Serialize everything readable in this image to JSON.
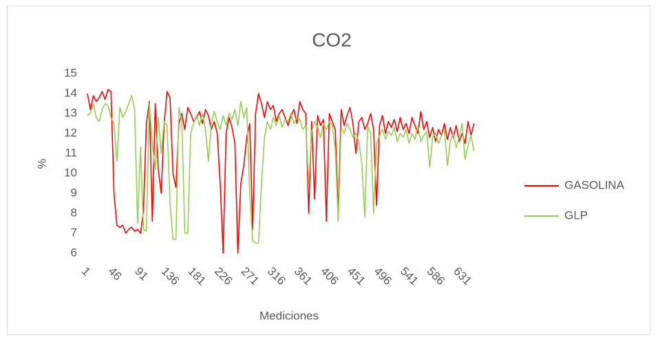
{
  "chart_data": {
    "type": "line",
    "title": "CO2",
    "xlabel": "Mediciones",
    "ylabel": "%",
    "x": [
      1,
      6,
      11,
      16,
      21,
      26,
      31,
      36,
      41,
      46,
      51,
      56,
      61,
      66,
      71,
      76,
      81,
      86,
      91,
      96,
      101,
      106,
      111,
      116,
      121,
      126,
      131,
      136,
      141,
      146,
      151,
      156,
      161,
      166,
      171,
      176,
      181,
      186,
      191,
      196,
      201,
      206,
      211,
      216,
      221,
      226,
      231,
      236,
      241,
      246,
      251,
      256,
      261,
      266,
      271,
      276,
      281,
      286,
      291,
      296,
      301,
      306,
      311,
      316,
      321,
      326,
      331,
      336,
      341,
      346,
      351,
      356,
      361,
      366,
      371,
      376,
      381,
      386,
      391,
      396,
      401,
      406,
      411,
      416,
      421,
      426,
      431,
      436,
      441,
      446,
      451,
      456,
      461,
      466,
      471,
      476,
      481,
      486,
      491,
      496,
      501,
      506,
      511,
      516,
      521,
      526,
      531,
      536,
      541,
      546,
      551,
      556,
      561,
      566,
      571,
      576,
      581,
      586,
      591,
      596,
      601,
      606,
      611,
      616,
      621,
      626,
      631,
      636,
      641,
      646,
      651,
      656
    ],
    "series": [
      {
        "name": "GASOLINA",
        "color": "#ff0000",
        "values": [
          14.0,
          13.2,
          13.9,
          13.6,
          13.8,
          14.1,
          13.7,
          14.2,
          14.1,
          9.0,
          7.4,
          7.3,
          7.4,
          7.0,
          7.2,
          7.3,
          7.1,
          7.2,
          7.0,
          8.1,
          12.5,
          13.6,
          7.6,
          13.5,
          10.2,
          9.0,
          12.5,
          14.1,
          13.8,
          10.0,
          9.3,
          12.5,
          13.0,
          12.2,
          13.3,
          13.0,
          12.6,
          12.8,
          13.1,
          12.5,
          13.2,
          12.9,
          12.2,
          12.6,
          12.0,
          9.5,
          6.0,
          12.0,
          12.8,
          12.3,
          11.5,
          6.0,
          9.5,
          10.4,
          11.8,
          12.5,
          7.2,
          13.0,
          14.0,
          13.5,
          12.8,
          13.6,
          13.2,
          13.4,
          12.6,
          13.0,
          13.2,
          12.8,
          12.4,
          12.9,
          13.2,
          12.5,
          13.6,
          13.2,
          13.0,
          8.0,
          12.6,
          8.7,
          12.9,
          12.4,
          12.7,
          7.6,
          13.0,
          12.6,
          12.2,
          8.0,
          13.2,
          12.4,
          12.9,
          13.3,
          12.5,
          11.0,
          12.6,
          12.8,
          12.2,
          12.5,
          13.0,
          12.2,
          8.4,
          12.4,
          12.9,
          12.0,
          12.6,
          12.3,
          12.7,
          12.1,
          12.8,
          12.2,
          12.5,
          12.0,
          12.8,
          12.4,
          12.0,
          13.1,
          12.2,
          12.6,
          11.8,
          12.3,
          11.6,
          12.2,
          11.9,
          12.5,
          11.7,
          12.3,
          11.8,
          12.4,
          11.6,
          12.0,
          11.5,
          12.6,
          11.9,
          12.5
        ]
      },
      {
        "name": "GLP",
        "color": "#92d050",
        "values": [
          12.9,
          13.0,
          13.5,
          12.8,
          12.6,
          13.2,
          13.5,
          13.4,
          12.8,
          12.5,
          10.6,
          13.3,
          12.8,
          13.1,
          13.5,
          13.9,
          13.2,
          7.5,
          11.3,
          7.2,
          7.1,
          13.5,
          11.5,
          10.2,
          12.8,
          11.0,
          12.6,
          12.4,
          8.5,
          6.7,
          6.7,
          13.3,
          12.6,
          7.0,
          7.0,
          12.0,
          12.5,
          12.9,
          12.4,
          13.0,
          12.2,
          10.6,
          12.5,
          13.1,
          12.6,
          12.2,
          12.9,
          12.4,
          13.0,
          12.7,
          13.2,
          12.4,
          13.6,
          12.8,
          13.3,
          9.0,
          6.6,
          6.5,
          6.5,
          9.5,
          11.8,
          12.6,
          12.2,
          12.8,
          12.4,
          12.9,
          12.3,
          12.7,
          12.6,
          13.0,
          12.5,
          12.8,
          12.7,
          12.2,
          12.4,
          9.5,
          12.1,
          12.6,
          12.3,
          11.8,
          12.5,
          12.2,
          12.6,
          12.4,
          11.2,
          7.6,
          12.3,
          12.0,
          12.5,
          12.2,
          11.8,
          12.0,
          11.6,
          10.5,
          7.8,
          12.4,
          12.0,
          8.0,
          11.5,
          11.9,
          12.2,
          11.7,
          12.1,
          11.9,
          12.3,
          11.6,
          12.0,
          11.8,
          12.2,
          11.5,
          12.0,
          11.7,
          12.4,
          11.6,
          11.9,
          12.1,
          10.3,
          11.8,
          12.0,
          11.5,
          11.9,
          12.2,
          10.4,
          11.6,
          12.0,
          11.3,
          11.8,
          12.5,
          10.7,
          11.4,
          11.9,
          11.1
        ]
      }
    ],
    "xlim": [
      1,
      660
    ],
    "xticks": [
      1,
      46,
      91,
      136,
      181,
      226,
      271,
      316,
      361,
      406,
      451,
      496,
      541,
      586,
      631
    ],
    "ylim": [
      6,
      15
    ],
    "yticks": [
      6,
      7,
      8,
      9,
      10,
      11,
      12,
      13,
      14,
      15
    ],
    "grid": false,
    "legend": "right"
  }
}
